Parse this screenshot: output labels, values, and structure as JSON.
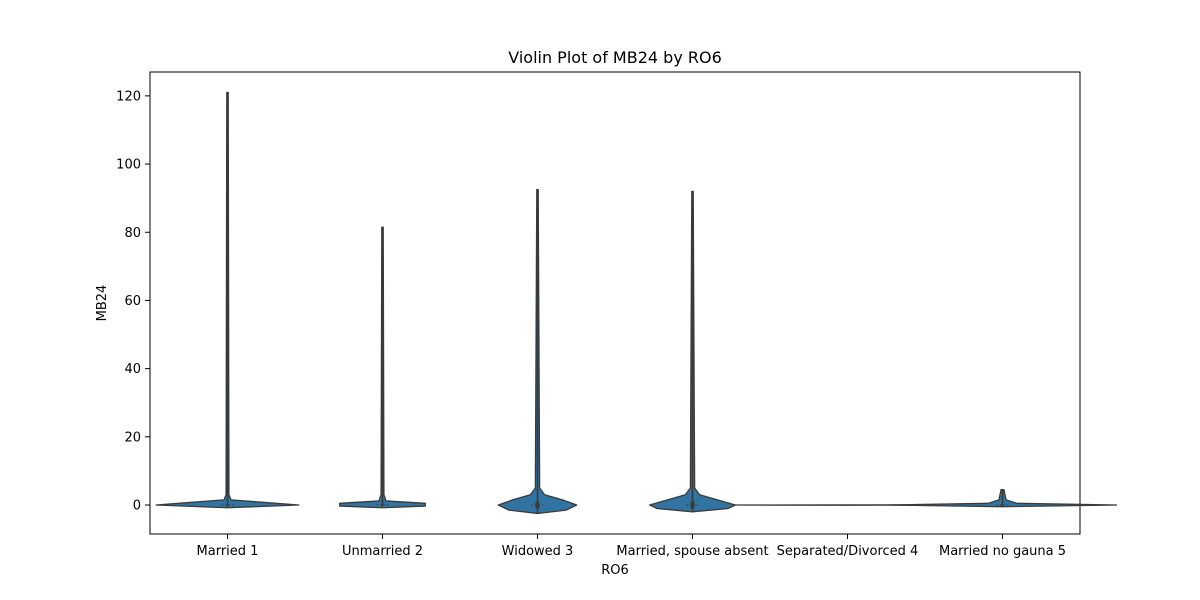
{
  "chart_data": {
    "type": "violin",
    "title": "Violin Plot of MB24 by RO6",
    "xlabel": "RO6",
    "ylabel": "MB24",
    "ylim": [
      -8.5,
      127
    ],
    "yticks": [
      0,
      20,
      40,
      60,
      80,
      100,
      120
    ],
    "grid": false,
    "fill_color": "#3274a1",
    "edge_color": "#3a3a3a",
    "categories": [
      "Married 1",
      "Unmarried 2",
      "Widowed 3",
      "Married, spouse absent",
      "Separated/Divorced 4",
      "Married no gauna 5"
    ],
    "violins": [
      {
        "category": "Married 1",
        "min": -0.5,
        "max": 121,
        "q1": 0,
        "median": 0,
        "q3": 0,
        "profile": [
          [
            -0.8,
            0.0
          ],
          [
            0,
            1.0
          ],
          [
            0.8,
            0.5
          ],
          [
            1.5,
            0.05
          ],
          [
            3,
            0.02
          ],
          [
            121,
            0.01
          ]
        ]
      },
      {
        "category": "Unmarried 2",
        "min": -0.5,
        "max": 81.5,
        "q1": 0,
        "median": 0,
        "q3": 0,
        "profile": [
          [
            -0.8,
            0.0
          ],
          [
            -0.3,
            0.6
          ],
          [
            0.5,
            0.6
          ],
          [
            1.2,
            0.05
          ],
          [
            3,
            0.02
          ],
          [
            81.5,
            0.01
          ]
        ]
      },
      {
        "category": "Widowed 3",
        "min": -2.5,
        "max": 92.5,
        "q1": -1,
        "median": 0,
        "q3": 1,
        "profile": [
          [
            -2.5,
            0.0
          ],
          [
            -1.5,
            0.4
          ],
          [
            0,
            0.55
          ],
          [
            1.5,
            0.35
          ],
          [
            3,
            0.1
          ],
          [
            5,
            0.03
          ],
          [
            92.5,
            0.01
          ]
        ]
      },
      {
        "category": "Married, spouse absent",
        "min": -2,
        "max": 92,
        "q1": -1,
        "median": 0,
        "q3": 1,
        "profile": [
          [
            -2,
            0.0
          ],
          [
            -1,
            0.5
          ],
          [
            0,
            0.6
          ],
          [
            1.5,
            0.35
          ],
          [
            3,
            0.1
          ],
          [
            5,
            0.03
          ],
          [
            92,
            0.01
          ]
        ]
      },
      {
        "category": "Separated/Divorced 4",
        "min": 0,
        "max": 0,
        "q1": 0,
        "median": 0,
        "q3": 0,
        "profile": [
          [
            -0.05,
            0.0
          ],
          [
            0,
            1.6
          ],
          [
            0.05,
            0.0
          ]
        ]
      },
      {
        "category": "Married no gauna 5",
        "min": -0.5,
        "max": 4.5,
        "q1": 0,
        "median": 0,
        "q3": 0,
        "profile": [
          [
            -0.5,
            0.0
          ],
          [
            0,
            1.6
          ],
          [
            0.5,
            0.2
          ],
          [
            1.5,
            0.05
          ],
          [
            4.5,
            0.02
          ]
        ]
      }
    ]
  }
}
